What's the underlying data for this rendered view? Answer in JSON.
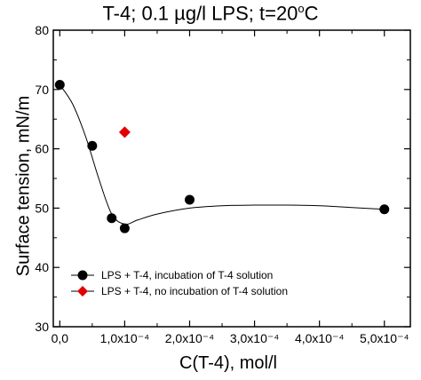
{
  "chart_data": {
    "type": "scatter",
    "title_main": "T-4; 0.1 µg/l LPS; t=20",
    "title_sup": "o",
    "title_end": "C",
    "xlabel": "C(T-4), mol/l",
    "ylabel": "Surface tension, mN/m",
    "xlim": [
      -1e-05,
      0.00054
    ],
    "ylim": [
      30,
      80
    ],
    "x_ticks": [
      0,
      5e-05,
      0.0001,
      0.00015,
      0.0002,
      0.00025,
      0.0003,
      0.00035,
      0.0004,
      0.00045,
      0.0005
    ],
    "x_tick_labels": [
      "0,0",
      "",
      "1,0x10⁻⁴",
      "",
      "2,0x10⁻⁴",
      "",
      "3,0x10⁻⁴",
      "",
      "4,0x10⁻⁴",
      "",
      "5,0x10⁻⁴"
    ],
    "y_ticks": [
      30,
      40,
      50,
      60,
      70,
      80
    ],
    "y_tick_labels": [
      "30",
      "40",
      "50",
      "60",
      "70",
      "80"
    ],
    "grid": false,
    "legend_position": "bottom-left",
    "series": [
      {
        "name": "LPS + T-4, incubation of T-4 solution",
        "marker": "circle",
        "color": "#000000",
        "x": [
          0,
          5e-05,
          8e-05,
          0.0001,
          0.0002,
          0.0005
        ],
        "y": [
          70.8,
          60.5,
          48.3,
          46.6,
          51.4,
          49.8
        ]
      },
      {
        "name": "LPS + T-4, no incubation of T-4 solution",
        "marker": "diamond",
        "color": "#e00000",
        "x": [
          0.0001
        ],
        "y": [
          62.8
        ]
      }
    ],
    "fit_curve": {
      "x": [
        0,
        2e-05,
        4e-05,
        6e-05,
        8e-05,
        0.0001,
        0.00012,
        0.00015,
        0.0002,
        0.00025,
        0.0003,
        0.00035,
        0.0004,
        0.00045,
        0.0005
      ],
      "y": [
        70.8,
        67.5,
        62.0,
        55.0,
        49.0,
        47.3,
        48.0,
        49.0,
        50.0,
        50.4,
        50.5,
        50.5,
        50.4,
        50.1,
        49.8
      ]
    }
  }
}
